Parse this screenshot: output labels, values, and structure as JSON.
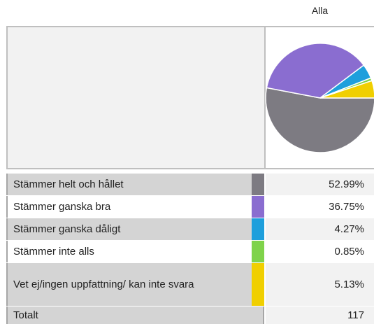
{
  "chart_data": {
    "type": "pie",
    "title": "Alla",
    "categories": [
      "Stämmer helt och hållet",
      "Stämmer ganska bra",
      "Stämmer ganska dåligt",
      "Stämmer inte alls",
      "Vet ej/ingen uppfattning/ kan inte svara"
    ],
    "values": [
      52.99,
      36.75,
      4.27,
      0.85,
      5.13
    ],
    "value_labels": [
      "52.99%",
      "36.75%",
      "4.27%",
      "0.85%",
      "5.13%"
    ],
    "colors": [
      "#7d7b82",
      "#8a6dd0",
      "#1e9fdc",
      "#7fd34a",
      "#f0cf00"
    ],
    "total_label": "Totalt",
    "total": 117
  }
}
